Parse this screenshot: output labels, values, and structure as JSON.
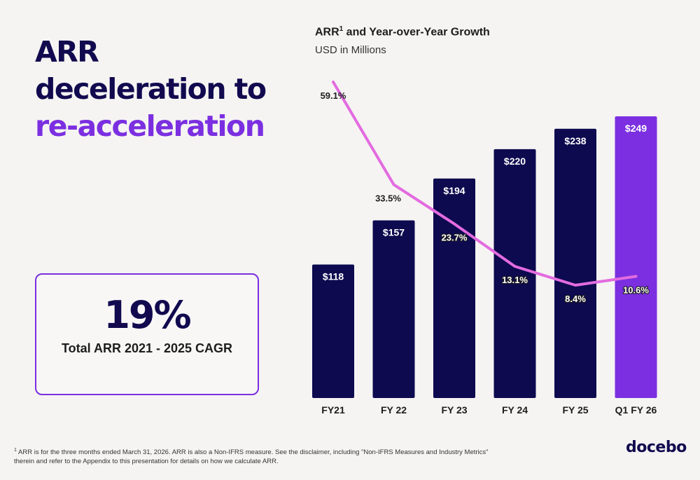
{
  "headline": {
    "line1": "ARR",
    "line2": "deceleration to",
    "line3": "re-acceleration"
  },
  "cagr": {
    "value": "19%",
    "label": "Total ARR 2021 - 2025 CAGR"
  },
  "colors": {
    "navy": "#0d0a4f",
    "purple": "#7b2fe0",
    "line": "#e36be0",
    "background": "#f5f4f2"
  },
  "chart_data": {
    "type": "bar",
    "title": "ARR",
    "title_superscript": "1",
    "title_rest": " and Year-over-Year Growth",
    "subtitle": "USD in Millions",
    "categories": [
      "FY21",
      "FY 22",
      "FY 23",
      "FY 24",
      "FY 25",
      "Q1 FY 26"
    ],
    "series": [
      {
        "values": [
          118,
          157,
          194,
          220,
          238,
          249
        ],
        "value_labels": [
          "$118",
          "$157",
          "$194",
          "$220",
          "$238",
          "$249"
        ],
        "colors": [
          "#0d0a4f",
          "#0d0a4f",
          "#0d0a4f",
          "#0d0a4f",
          "#0d0a4f",
          "#7b2fe0"
        ]
      },
      {
        "type": "line",
        "values": [
          59.1,
          33.5,
          23.7,
          13.1,
          8.4,
          10.6
        ],
        "value_labels": [
          "59.1%",
          "33.5%",
          "23.7%",
          "13.1%",
          "8.4%",
          "10.6%"
        ],
        "color": "#e36be0"
      }
    ]
  },
  "footnote": {
    "superscript": "1",
    "text": " ARR is  for the three months ended March 31, 2026. ARR is also a Non-IFRS measure. See the disclaimer, including \"Non-IFRS Measures and Industry Metrics\" therein and refer to the Appendix to this presentation for details on how we calculate ARR."
  },
  "logo": "docebo"
}
